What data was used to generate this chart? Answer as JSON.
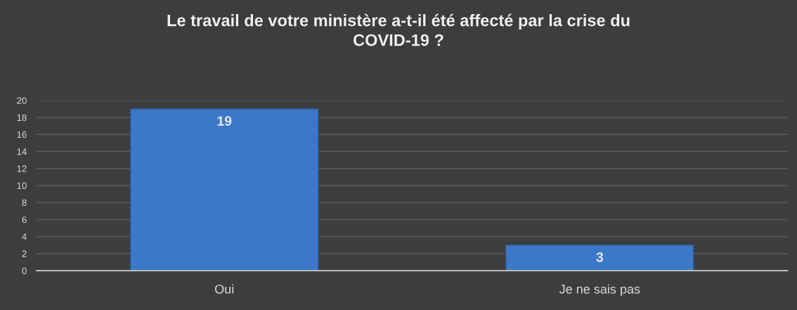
{
  "chart_data": {
    "type": "bar",
    "title": "Le travail de votre ministère a-t-il été affecté par la crise du\nCOVID-19 ?",
    "categories": [
      "Oui",
      "Je ne sais pas"
    ],
    "values": [
      19,
      3
    ],
    "color": "#3b78c9",
    "ylim": [
      0,
      20
    ],
    "yticks": [
      0,
      2,
      4,
      6,
      8,
      10,
      12,
      14,
      16,
      18,
      20
    ],
    "grid": "y",
    "data_labels": true
  }
}
